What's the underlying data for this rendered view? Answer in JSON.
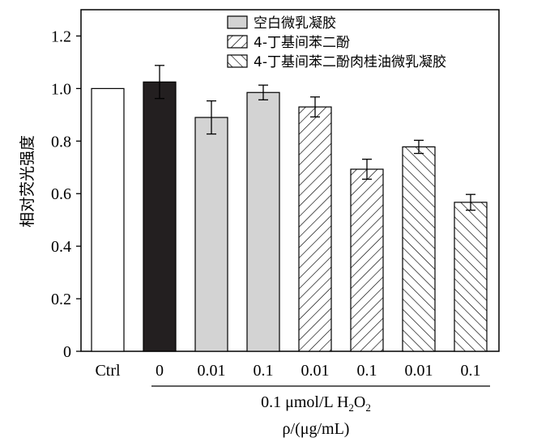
{
  "chart_data": {
    "type": "bar",
    "ylabel": "相对荧光强度",
    "xlabel_line1_prefix": "0.1 μmol/L H",
    "xlabel_line1_sub1": "2",
    "xlabel_line1_mid": "O",
    "xlabel_line1_sub2": "2",
    "xlabel_line2": "ρ/(μg/mL)",
    "ylim": [
      0,
      1.3
    ],
    "yticks": [
      "0",
      "0.2",
      "0.4",
      "0.6",
      "0.8",
      "1.0",
      "1.2"
    ],
    "ytick_values": [
      0,
      0.2,
      0.4,
      0.6,
      0.8,
      1.0,
      1.2
    ],
    "categories": [
      "Ctrl",
      "0",
      "0.01",
      "0.1",
      "0.01",
      "0.1",
      "0.01",
      "0.1"
    ],
    "values": [
      1.0,
      1.025,
      0.89,
      0.985,
      0.93,
      0.693,
      0.778,
      0.567
    ],
    "errors": [
      0,
      0.063,
      0.063,
      0.028,
      0.038,
      0.038,
      0.025,
      0.03
    ],
    "bar_styles": [
      "white",
      "black",
      "gray",
      "gray",
      "hatch-right",
      "hatch-right",
      "hatch-left",
      "hatch-left"
    ],
    "legend": [
      {
        "label": "空白微乳凝胶",
        "style": "gray"
      },
      {
        "label": "4-丁基间苯二酚",
        "style": "hatch-right"
      },
      {
        "label": "4-丁基间苯二酚肉桂油微乳凝胶",
        "style": "hatch-left"
      }
    ],
    "legend_position": "top-right",
    "grid": false,
    "colors": {
      "gray": "#d3d3d3",
      "black": "#231f20",
      "white": "#ffffff"
    }
  }
}
